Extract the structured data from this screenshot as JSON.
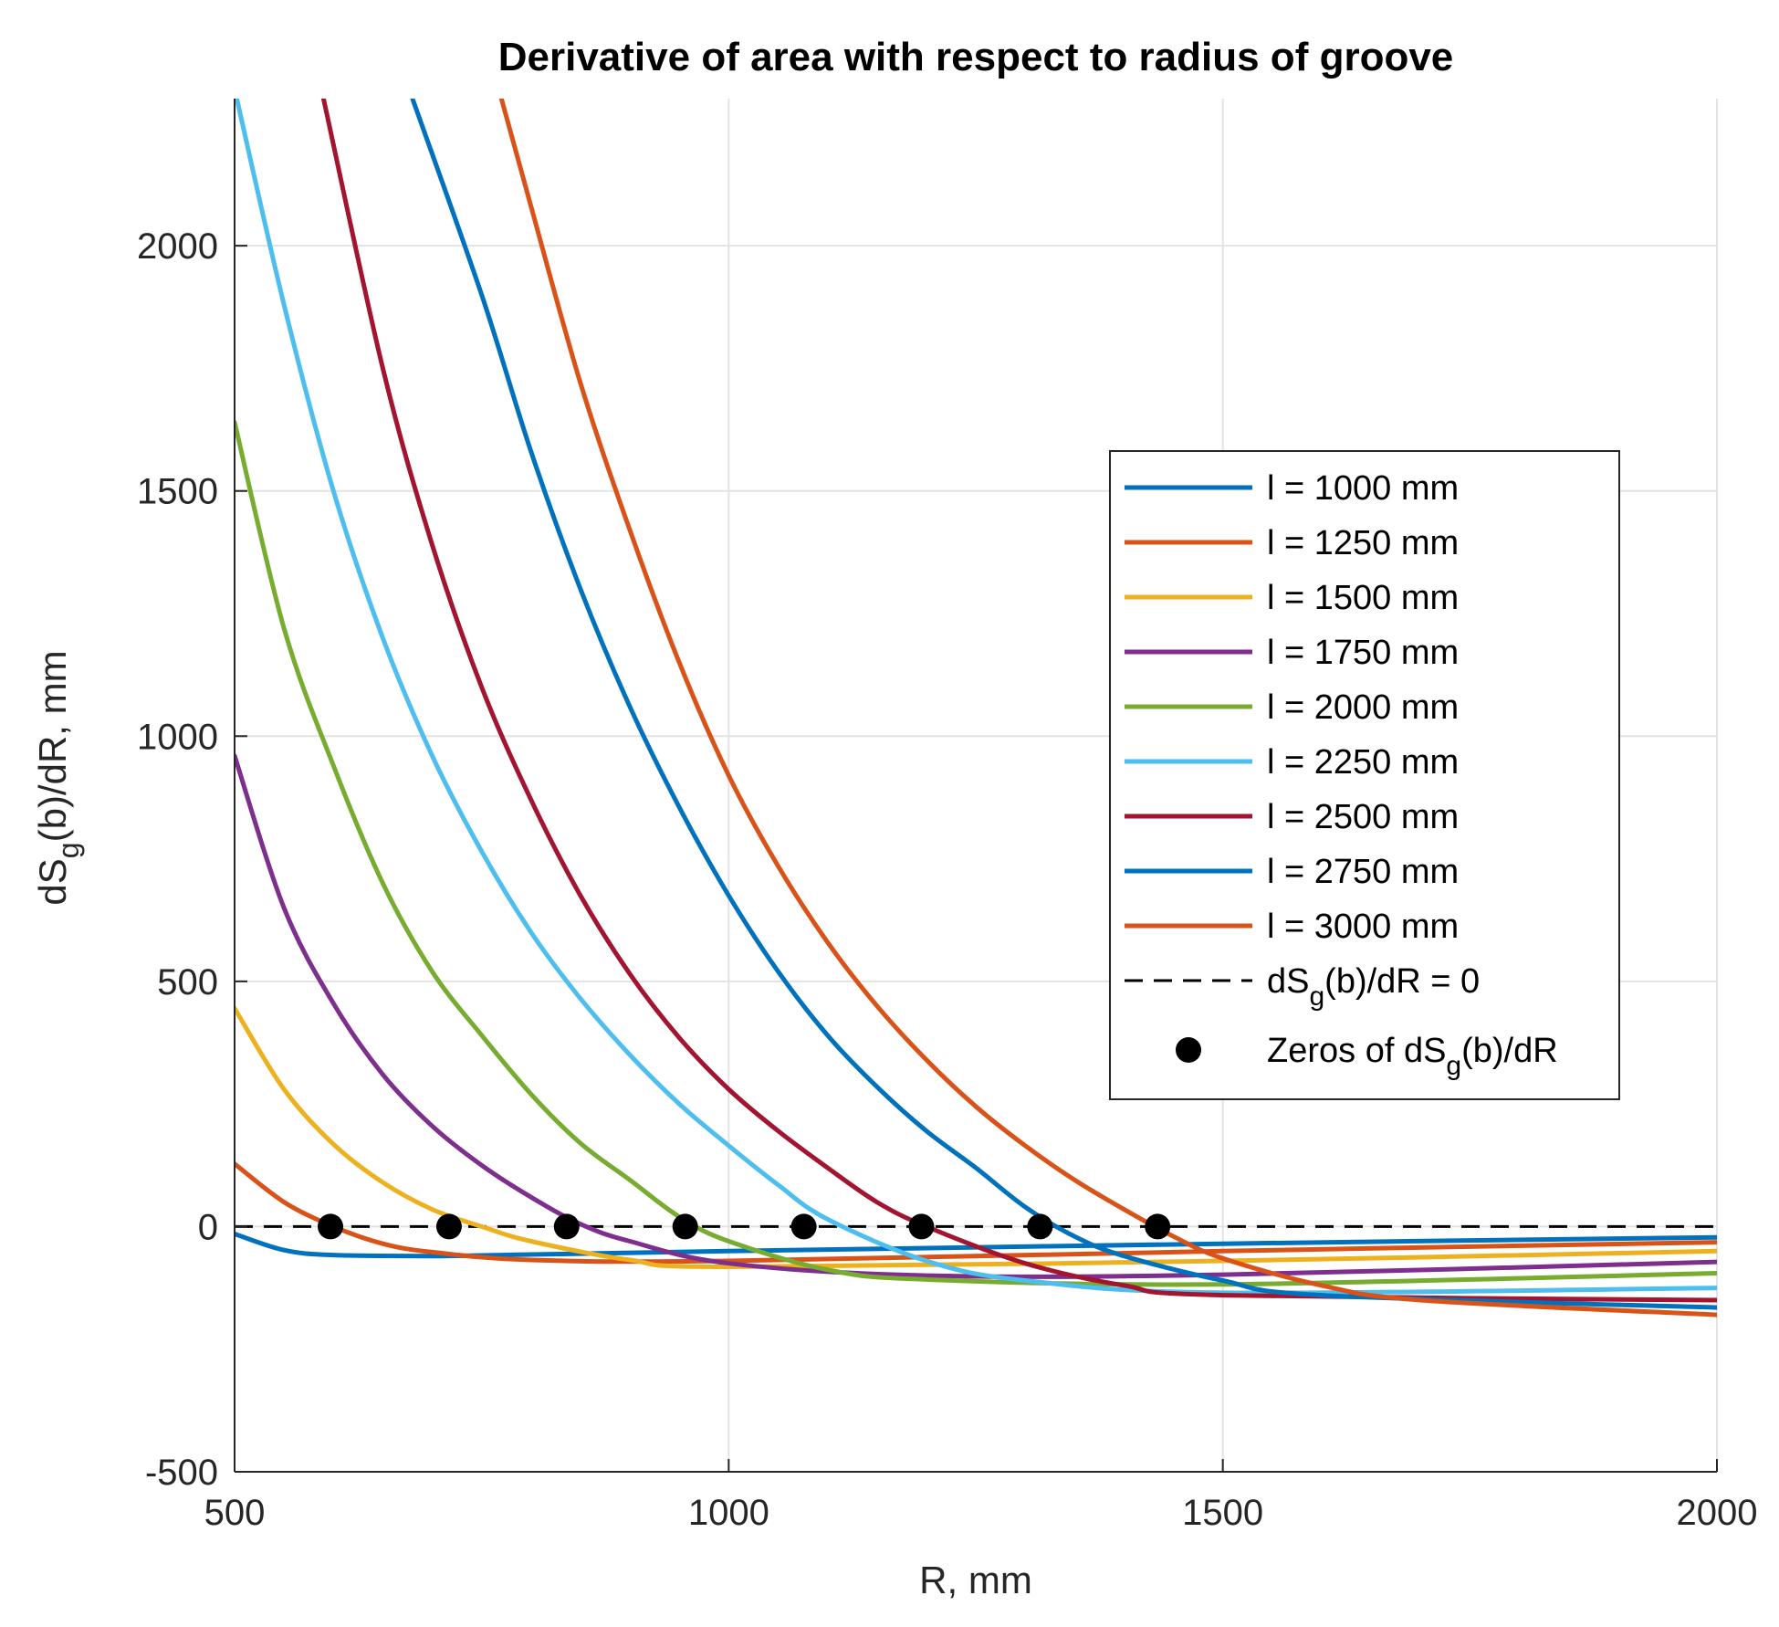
{
  "chart_data": {
    "type": "line",
    "title": "Derivative of area with respect to radius of groove",
    "xlabel": "R, mm",
    "ylabel": {
      "pre": "dS",
      "sub": "g",
      "post": "(b)/dR, mm"
    },
    "xlim": [
      500,
      2000
    ],
    "ylim": [
      -500,
      2300
    ],
    "xticks": [
      500,
      1000,
      1500,
      2000
    ],
    "yticks": [
      -500,
      0,
      500,
      1000,
      1500,
      2000
    ],
    "xtick_labels": [
      "500",
      "1000",
      "1500",
      "2000"
    ],
    "ytick_labels": [
      "-500",
      "0",
      "500",
      "1000",
      "1500",
      "2000"
    ],
    "grid": true,
    "legend_position": "right",
    "series": [
      {
        "name": "l = 1000 mm",
        "color": "#0072BD",
        "x": [
          500,
          550,
          600,
          700,
          800,
          1000,
          1500,
          2000
        ],
        "y": [
          -15,
          -48,
          -58,
          -60,
          -57,
          -50,
          -35,
          -22
        ]
      },
      {
        "name": "l = 1250 mm",
        "color": "#D95319",
        "x": [
          500,
          550,
          600,
          650,
          700,
          800,
          1000,
          1500,
          2000
        ],
        "y": [
          128,
          50,
          0,
          -35,
          -52,
          -68,
          -70,
          -50,
          -32
        ]
      },
      {
        "name": "l = 1500 mm",
        "color": "#EDB120",
        "x": [
          500,
          550,
          600,
          650,
          700,
          750,
          800,
          900,
          1000,
          1500,
          2000
        ],
        "y": [
          445,
          280,
          168,
          90,
          35,
          0,
          -30,
          -68,
          -82,
          -70,
          -50
        ]
      },
      {
        "name": "l = 1750 mm",
        "color": "#7E2F8E",
        "x": [
          500,
          550,
          600,
          650,
          700,
          750,
          800,
          850,
          900,
          1000,
          1200,
          1500,
          2000
        ],
        "y": [
          960,
          650,
          455,
          310,
          205,
          125,
          60,
          5,
          -30,
          -75,
          -100,
          -98,
          -72
        ]
      },
      {
        "name": "l = 2000 mm",
        "color": "#77AC30",
        "x": [
          500,
          550,
          600,
          650,
          700,
          750,
          800,
          850,
          900,
          950,
          1000,
          1100,
          1200,
          1500,
          2000
        ],
        "y": [
          1640,
          1220,
          940,
          700,
          520,
          390,
          270,
          170,
          95,
          20,
          -30,
          -88,
          -108,
          -118,
          -95
        ]
      },
      {
        "name": "l = 2250 mm",
        "color": "#4DBEEE",
        "x": [
          500,
          550,
          600,
          650,
          700,
          750,
          800,
          850,
          900,
          950,
          1000,
          1050,
          1100,
          1200,
          1300,
          1500,
          2000
        ],
        "y": [
          2320,
          1880,
          1500,
          1200,
          960,
          765,
          600,
          465,
          350,
          250,
          165,
          85,
          15,
          -70,
          -110,
          -135,
          -125
        ]
      },
      {
        "name": "l = 2500 mm",
        "color": "#A2142F",
        "x": [
          590,
          650,
          700,
          750,
          800,
          850,
          900,
          950,
          1000,
          1050,
          1100,
          1150,
          1200,
          1300,
          1400,
          1500,
          2000
        ],
        "y": [
          2300,
          1750,
          1390,
          1100,
          870,
          675,
          515,
          385,
          280,
          195,
          120,
          50,
          0,
          -75,
          -120,
          -140,
          -150
        ]
      },
      {
        "name": "l = 2750 mm",
        "color": "#0072BD",
        "x": [
          680,
          750,
          800,
          850,
          900,
          950,
          1000,
          1050,
          1100,
          1150,
          1200,
          1250,
          1300,
          1350,
          1400,
          1500,
          1600,
          2000
        ],
        "y": [
          2300,
          1900,
          1580,
          1300,
          1060,
          855,
          675,
          520,
          390,
          285,
          195,
          120,
          40,
          -20,
          -60,
          -110,
          -140,
          -165
        ]
      },
      {
        "name": "l = 3000 mm",
        "color": "#D95319",
        "x": [
          770,
          800,
          850,
          900,
          950,
          1000,
          1050,
          1100,
          1150,
          1200,
          1250,
          1300,
          1350,
          1400,
          1450,
          1500,
          1600,
          1700,
          2000
        ],
        "y": [
          2300,
          2080,
          1720,
          1420,
          1150,
          920,
          735,
          580,
          450,
          340,
          245,
          165,
          95,
          35,
          -20,
          -65,
          -120,
          -150,
          -180
        ]
      }
    ],
    "reference_line": {
      "name": "dS_g(b)/dR = 0",
      "y": 0,
      "color": "#000000"
    },
    "zeros": {
      "name": "Zeros of dS_g(b)/dR",
      "x": [
        597,
        717,
        836,
        956,
        1076,
        1195,
        1315,
        1434
      ],
      "y": [
        0,
        0,
        0,
        0,
        0,
        0,
        0,
        0
      ]
    },
    "legend_entries": [
      "l = 1000 mm",
      "l = 1250 mm",
      "l = 1500 mm",
      "l = 1750 mm",
      "l = 2000 mm",
      "l = 2250 mm",
      "l = 2500 mm",
      "l = 2750 mm",
      "l = 3000 mm"
    ],
    "legend_ref": {
      "pre": "dS",
      "sub": "g",
      "post": "(b)/dR = 0"
    },
    "legend_zeros": {
      "pre": "Zeros of dS",
      "sub": "g",
      "post": "(b)/dR"
    }
  }
}
